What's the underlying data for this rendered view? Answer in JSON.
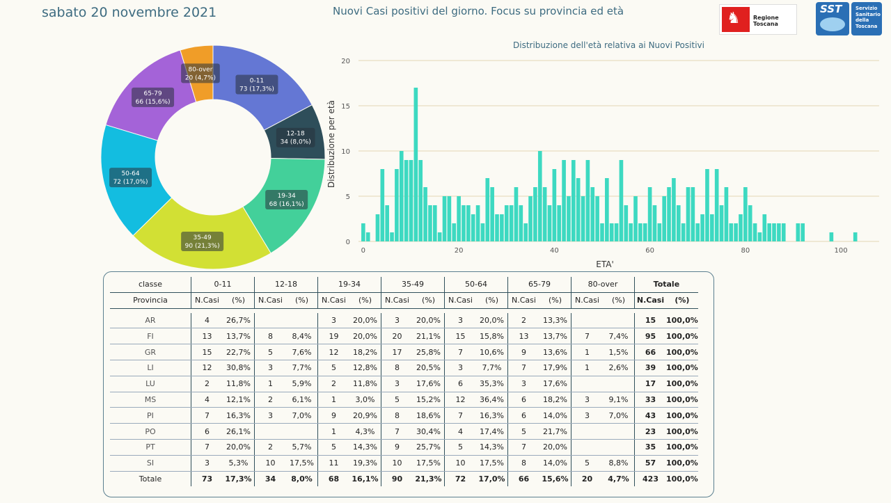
{
  "header": {
    "date": "sabato 20 novembre 2021",
    "headline": "Nuovi Casi positivi del giorno. Focus su provincia ed età",
    "logo_regione": "Regione Toscana",
    "logo_sst_short": "SST",
    "logo_sst_full": [
      "Servizio",
      "Sanitario",
      "della",
      "Toscana"
    ]
  },
  "chart_data": [
    {
      "type": "pie",
      "variant": "donut",
      "categories": [
        "0-11",
        "12-18",
        "19-34",
        "35-49",
        "50-64",
        "65-79",
        "80-over"
      ],
      "values": [
        73,
        34,
        68,
        90,
        72,
        66,
        20
      ],
      "labels": [
        "73 (17,3%)",
        "34 (8,0%)",
        "68 (16,1%)",
        "90 (21,3%)",
        "72 (17,0%)",
        "66 (15,6%)",
        "20 (4,7%)"
      ],
      "colors": [
        "#6477d4",
        "#2e4e5a",
        "#43d09a",
        "#d2e034",
        "#13bde0",
        "#a463d8",
        "#f09d28"
      ]
    },
    {
      "type": "bar",
      "title": "Distribuzione dell'età relativa ai Nuovi Positivi",
      "xlabel": "ETA'",
      "ylabel": "Distribuzione per età",
      "ylim": [
        0,
        20
      ],
      "xlim": [
        -1,
        108
      ],
      "xticks": [
        0,
        20,
        40,
        60,
        80,
        100
      ],
      "yticks": [
        0,
        5,
        10,
        15,
        20
      ],
      "color": "#3dd9c1",
      "x": [
        0,
        1,
        2,
        3,
        4,
        5,
        6,
        7,
        8,
        9,
        10,
        11,
        12,
        13,
        14,
        15,
        16,
        17,
        18,
        19,
        20,
        21,
        22,
        23,
        24,
        25,
        26,
        27,
        28,
        29,
        30,
        31,
        32,
        33,
        34,
        35,
        36,
        37,
        38,
        39,
        40,
        41,
        42,
        43,
        44,
        45,
        46,
        47,
        48,
        49,
        50,
        51,
        52,
        53,
        54,
        55,
        56,
        57,
        58,
        59,
        60,
        61,
        62,
        63,
        64,
        65,
        66,
        67,
        68,
        69,
        70,
        71,
        72,
        73,
        74,
        75,
        76,
        77,
        78,
        79,
        80,
        81,
        82,
        83,
        84,
        85,
        86,
        87,
        88,
        89,
        90,
        91,
        92,
        93,
        94,
        95,
        96,
        97,
        98,
        99,
        100,
        101,
        102,
        103
      ],
      "values": [
        2,
        1,
        0,
        3,
        8,
        4,
        1,
        8,
        10,
        9,
        9,
        17,
        9,
        6,
        4,
        4,
        1,
        5,
        5,
        2,
        5,
        4,
        4,
        3,
        4,
        2,
        7,
        6,
        3,
        3,
        4,
        4,
        6,
        4,
        2,
        5,
        6,
        10,
        6,
        4,
        8,
        4,
        9,
        5,
        9,
        7,
        5,
        9,
        6,
        5,
        2,
        7,
        2,
        2,
        9,
        4,
        2,
        5,
        2,
        2,
        6,
        4,
        2,
        5,
        6,
        7,
        4,
        2,
        6,
        6,
        2,
        3,
        8,
        3,
        8,
        4,
        6,
        2,
        2,
        3,
        6,
        4,
        2,
        1,
        3,
        2,
        2,
        2,
        2,
        0,
        0,
        2,
        2,
        0,
        0,
        0,
        0,
        0,
        1,
        0,
        0,
        0,
        0,
        1
      ]
    }
  ],
  "table": {
    "classe_label": "classe",
    "provincia_label": "Provincia",
    "age_classes": [
      "0-11",
      "12-18",
      "19-34",
      "35-49",
      "50-64",
      "65-79",
      "80-over"
    ],
    "totale_label": "Totale",
    "subheaders": [
      "N.Casi",
      "(%)"
    ],
    "rows": [
      {
        "prov": "AR",
        "cells": [
          "4",
          "26,7%",
          "",
          "",
          "3",
          "20,0%",
          "3",
          "20,0%",
          "3",
          "20,0%",
          "2",
          "13,3%",
          "",
          ""
        ],
        "tot_n": "15",
        "tot_p": "100,0%"
      },
      {
        "prov": "FI",
        "cells": [
          "13",
          "13,7%",
          "8",
          "8,4%",
          "19",
          "20,0%",
          "20",
          "21,1%",
          "15",
          "15,8%",
          "13",
          "13,7%",
          "7",
          "7,4%"
        ],
        "tot_n": "95",
        "tot_p": "100,0%"
      },
      {
        "prov": "GR",
        "cells": [
          "15",
          "22,7%",
          "5",
          "7,6%",
          "12",
          "18,2%",
          "17",
          "25,8%",
          "7",
          "10,6%",
          "9",
          "13,6%",
          "1",
          "1,5%"
        ],
        "tot_n": "66",
        "tot_p": "100,0%"
      },
      {
        "prov": "LI",
        "cells": [
          "12",
          "30,8%",
          "3",
          "7,7%",
          "5",
          "12,8%",
          "8",
          "20,5%",
          "3",
          "7,7%",
          "7",
          "17,9%",
          "1",
          "2,6%"
        ],
        "tot_n": "39",
        "tot_p": "100,0%"
      },
      {
        "prov": "LU",
        "cells": [
          "2",
          "11,8%",
          "1",
          "5,9%",
          "2",
          "11,8%",
          "3",
          "17,6%",
          "6",
          "35,3%",
          "3",
          "17,6%",
          "",
          ""
        ],
        "tot_n": "17",
        "tot_p": "100,0%"
      },
      {
        "prov": "MS",
        "cells": [
          "4",
          "12,1%",
          "2",
          "6,1%",
          "1",
          "3,0%",
          "5",
          "15,2%",
          "12",
          "36,4%",
          "6",
          "18,2%",
          "3",
          "9,1%"
        ],
        "tot_n": "33",
        "tot_p": "100,0%"
      },
      {
        "prov": "PI",
        "cells": [
          "7",
          "16,3%",
          "3",
          "7,0%",
          "9",
          "20,9%",
          "8",
          "18,6%",
          "7",
          "16,3%",
          "6",
          "14,0%",
          "3",
          "7,0%"
        ],
        "tot_n": "43",
        "tot_p": "100,0%"
      },
      {
        "prov": "PO",
        "cells": [
          "6",
          "26,1%",
          "",
          "",
          "1",
          "4,3%",
          "7",
          "30,4%",
          "4",
          "17,4%",
          "5",
          "21,7%",
          "",
          ""
        ],
        "tot_n": "23",
        "tot_p": "100,0%"
      },
      {
        "prov": "PT",
        "cells": [
          "7",
          "20,0%",
          "2",
          "5,7%",
          "5",
          "14,3%",
          "9",
          "25,7%",
          "5",
          "14,3%",
          "7",
          "20,0%",
          "",
          ""
        ],
        "tot_n": "35",
        "tot_p": "100,0%"
      },
      {
        "prov": "SI",
        "cells": [
          "3",
          "5,3%",
          "10",
          "17,5%",
          "11",
          "19,3%",
          "10",
          "17,5%",
          "10",
          "17,5%",
          "8",
          "14,0%",
          "5",
          "8,8%"
        ],
        "tot_n": "57",
        "tot_p": "100,0%"
      }
    ],
    "total_row": {
      "prov": "Totale",
      "cells": [
        "73",
        "17,3%",
        "34",
        "8,0%",
        "68",
        "16,1%",
        "90",
        "21,3%",
        "72",
        "17,0%",
        "66",
        "15,6%",
        "20",
        "4,7%"
      ],
      "tot_n": "423",
      "tot_p": "100,0%"
    }
  }
}
